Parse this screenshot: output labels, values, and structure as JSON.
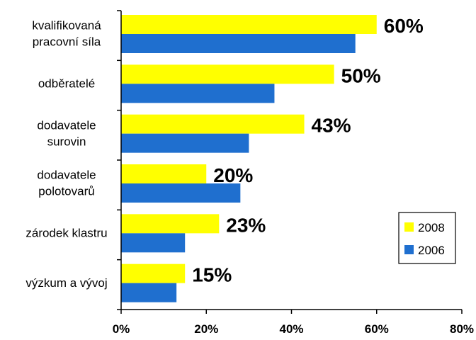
{
  "chart_data": {
    "type": "bar",
    "orientation": "horizontal",
    "categories": [
      [
        "kvalifikovaná",
        "pracovní síla"
      ],
      [
        "odběratelé"
      ],
      [
        "dodavatele",
        "surovin"
      ],
      [
        "dodavatele",
        "polotovarů"
      ],
      [
        "zárodek klastru"
      ],
      [
        "výzkum a vývoj"
      ]
    ],
    "series": [
      {
        "name": "2008",
        "color": "#ffff00",
        "values": [
          60,
          50,
          43,
          20,
          23,
          15
        ]
      },
      {
        "name": "2006",
        "color": "#1f6fcf",
        "values": [
          55,
          36,
          30,
          28,
          15,
          13
        ]
      }
    ],
    "data_labels": [
      "60%",
      "50%",
      "43%",
      "20%",
      "23%",
      "15%"
    ],
    "xlim": [
      0,
      80
    ],
    "x_ticks": [
      "0%",
      "20%",
      "40%",
      "60%",
      "80%"
    ],
    "grid": false,
    "legend_position": "right"
  }
}
